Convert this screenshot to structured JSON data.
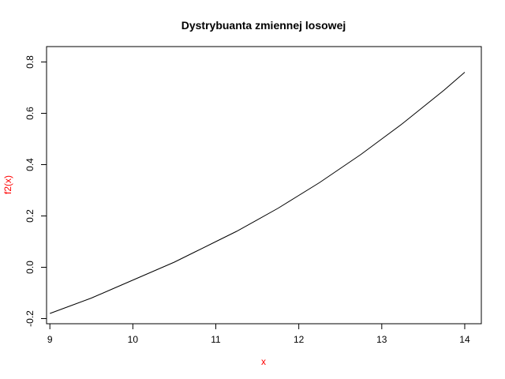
{
  "chart_data": {
    "type": "line",
    "title": "Dystrybuanta zmiennej losowej",
    "xlabel": "x",
    "ylabel": "f2(x)",
    "label_color": "#ff0000",
    "line_color": "#000000",
    "xlim": [
      8.96,
      14.2
    ],
    "ylim": [
      -0.22,
      0.86
    ],
    "x_ticks": [
      9,
      10,
      11,
      12,
      13,
      14
    ],
    "x_tick_labels": [
      "9",
      "10",
      "11",
      "12",
      "13",
      "14"
    ],
    "y_ticks": [
      -0.2,
      0.0,
      0.2,
      0.4,
      0.6,
      0.8
    ],
    "y_tick_labels": [
      "-0.2",
      "0.0",
      "0.2",
      "0.4",
      "0.6",
      "0.8"
    ],
    "grid": false,
    "series": [
      {
        "x": [
          9.0,
          9.25,
          9.5,
          9.75,
          10.0,
          10.25,
          10.5,
          10.75,
          11.0,
          11.25,
          11.5,
          11.75,
          12.0,
          12.25,
          12.5,
          12.75,
          13.0,
          13.25,
          13.5,
          13.75,
          14.0
        ],
        "values": [
          -0.18,
          -0.15,
          -0.12,
          -0.085,
          -0.05,
          -0.015,
          0.02,
          0.06,
          0.1,
          0.14,
          0.185,
          0.23,
          0.28,
          0.33,
          0.385,
          0.44,
          0.5,
          0.56,
          0.625,
          0.69,
          0.76
        ]
      }
    ]
  }
}
